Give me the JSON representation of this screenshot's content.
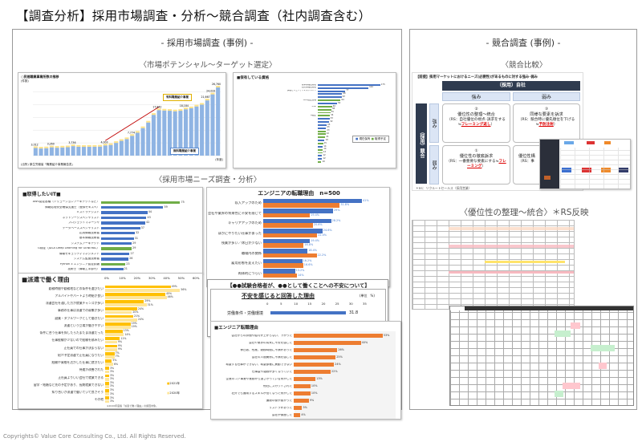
{
  "title": "【調査分析】採用市場調査・分析～競合調査（社内調査含む）",
  "left": {
    "heading": "- 採用市場調査 (事例) -",
    "section1": "〈市場ポテンシャル～ターゲット選定〉",
    "section2": "〈採用市場ニーズ調査・分析〉",
    "market_chart": {
      "title": "○民間職業事業所数の推移",
      "unit": "(件数)",
      "xunit": "(年度)",
      "source": "(出所) 厚生労働省「職業紹介事業報告書」",
      "legend_paid": "有料職業紹介事業",
      "legend_free": "無料職業紹介事業",
      "values": [
        3012,
        2800,
        2900,
        3260,
        3100,
        3200,
        3300,
        3736,
        3500,
        3450,
        3500,
        3500,
        3550,
        4003,
        4200,
        5000,
        5800,
        6500,
        7774,
        9000,
        10800,
        13000,
        16000,
        17842,
        17700,
        17600,
        17400,
        17600,
        18184,
        18600,
        19300,
        20000,
        21667,
        24033,
        26760
      ],
      "labels": [
        "3,012",
        "3,260",
        "3,736",
        "4,003",
        "7,774",
        "17,842",
        "18,184",
        "21,667",
        "24,033",
        "26,760"
      ]
    },
    "quals_chart": {
      "title": "■保有している資格",
      "legend": [
        "現在保有",
        "取得予定"
      ],
      "items": [
        {
          "l": "基本情報技術者",
          "v": 175,
          "c": "b"
        },
        {
          "l": "応用情報技術者",
          "v": 142,
          "c": "b"
        },
        {
          "l": "情報セキュリティマネジメント",
          "v": 77,
          "c": "b"
        },
        {
          "l": "",
          "v": 68,
          "c": "b"
        },
        {
          "l": "",
          "v": 67,
          "c": "b"
        },
        {
          "l": "AWS認定各種",
          "v": 64,
          "c": "g"
        },
        {
          "l": "",
          "v": 54,
          "c": "b"
        },
        {
          "l": "PMP",
          "v": 40,
          "c": "g"
        },
        {
          "l": "",
          "v": 38,
          "c": "g"
        },
        {
          "l": "",
          "v": 35,
          "c": "g"
        },
        {
          "l": "G検定",
          "v": 34,
          "c": "g"
        },
        {
          "l": "",
          "v": 33,
          "c": "b"
        },
        {
          "l": "",
          "v": 32,
          "c": "b"
        },
        {
          "l": "",
          "v": 25,
          "c": "b"
        },
        {
          "l": "",
          "v": 23,
          "c": "b"
        },
        {
          "l": "",
          "v": 23,
          "c": "g"
        },
        {
          "l": "",
          "v": 22,
          "c": "g"
        },
        {
          "l": "",
          "v": 21,
          "c": "g"
        },
        {
          "l": "",
          "v": 19,
          "c": "b"
        },
        {
          "l": "",
          "v": 15,
          "c": "g"
        },
        {
          "l": "",
          "v": 14,
          "c": "b"
        },
        {
          "l": "",
          "v": 14,
          "c": "g"
        },
        {
          "l": "",
          "v": 13,
          "c": "g"
        },
        {
          "l": "",
          "v": 12,
          "c": "b"
        },
        {
          "l": "",
          "v": 12,
          "c": "b"
        },
        {
          "l": "",
          "v": 10,
          "c": "g"
        }
      ]
    },
    "want_it": {
      "title": "■取得したいIT■",
      "items": [
        {
          "l": "AWS認定各種（ソリューションアーキテクトなど）",
          "v": 75,
          "c": "g"
        },
        {
          "l": "情報処理安全確保支援士（登録セキスペ）",
          "v": 59,
          "c": "b"
        },
        {
          "l": "ITストラテジスト",
          "v": 44,
          "c": "b"
        },
        {
          "l": "ネットワークスペシャリスト",
          "v": 43,
          "c": "b"
        },
        {
          "l": "プロジェクトマネージャ",
          "v": 42,
          "c": "b"
        },
        {
          "l": "データベーススペシャリスト",
          "v": 37,
          "c": "b"
        },
        {
          "l": "応用情報技術者",
          "v": 32,
          "c": "b"
        },
        {
          "l": "基本情報技術者",
          "v": 31,
          "c": "b"
        },
        {
          "l": "システムアーキテクト",
          "v": 29,
          "c": "b"
        },
        {
          "l": "G検定（JDLA Deep Learning for GENERAL）",
          "v": 29,
          "c": "g"
        },
        {
          "l": "情報セキュリティマネジメント",
          "v": 27,
          "c": "b"
        },
        {
          "l": "システム監査技術者",
          "v": 26,
          "c": "b"
        },
        {
          "l": "Python 3 エンジニア認定試験",
          "v": 23,
          "c": "g"
        },
        {
          "l": "技術士（情報工学部門）",
          "v": 21,
          "c": "b"
        }
      ]
    },
    "haken": {
      "title": "■派遣で働く理由",
      "ticks": [
        "0%",
        "10%",
        "20%",
        "30%",
        "40%",
        "50%",
        "60%"
      ],
      "legend": [
        "2021年",
        "2020年"
      ],
      "note": "※2020年度版「派遣で働く理由」の調査対象。",
      "items": [
        {
          "l": "勤務時間や勤務地などの条件を選びたい",
          "a": 49,
          "b": 56
        },
        {
          "l": "アルバイトやパートより時給が良い",
          "a": 45,
          "b": 46
        },
        {
          "l": "派遣会社を通した方が就業チャンスが多い",
          "a": 29,
          "b": 31
        },
        {
          "l": "事務の仕事は派遣での募集が多い",
          "a": 24,
          "b": 20
        },
        {
          "l": "副業・ダブルワークとして働きたい",
          "a": 21,
          "b": 24
        },
        {
          "l": "派遣という立場が働きやすい",
          "a": 19,
          "b": 19
        },
        {
          "l": "条件に合う仕事を探したらたまたま派遣だった",
          "a": 13,
          "b": 14
        },
        {
          "l": "仕事経験が少ないので経験を積みたい",
          "a": 11,
          "b": 9
        },
        {
          "l": "正社員での仕事が決まらない",
          "a": 9,
          "b": 9
        },
        {
          "l": "紹介予定派遣で正社員になりたい",
          "a": 7,
          "b": 7
        },
        {
          "l": "経験や資格を活かした仕事に就きたい",
          "a": 5,
          "b": 6
        },
        {
          "l": "待遇が改善された",
          "a": 3,
          "b": 3
        },
        {
          "l": "正社員よりいい会社で就業できる",
          "a": 3,
          "b": 3
        },
        {
          "l": "留学・結婚など先の予定があり、長期就業できない",
          "a": 3,
          "b": 3
        },
        {
          "l": "知り合いが派遣で働いていて良さそう",
          "a": 3,
          "b": 3
        },
        {
          "l": "その他",
          "a": 3,
          "b": 3
        }
      ]
    },
    "engineer_reasons": {
      "title": "エンジニアの転職理由　n=500",
      "items": [
        {
          "l": "収入アップのため",
          "a": 41.0,
          "b": 31.8
        },
        {
          "l": "会社や業界の将来性に不安を感じて",
          "a": 29.0,
          "b": 19.4
        },
        {
          "l": "キャリアアップのため",
          "a": 28.2,
          "b": 20.6
        },
        {
          "l": "ほかにやりたい仕事があった",
          "a": 24.6,
          "b": 22.4
        },
        {
          "l": "残業が多い／休日が少ない",
          "a": 19.4,
          "b": 16.8
        },
        {
          "l": "職場内の関係",
          "a": 18.4,
          "b": 22.2
        },
        {
          "l": "雇用形態を変えたい",
          "a": 16.2,
          "b": 16.6
        },
        {
          "l": "肉体的につらい",
          "a": 13.2,
          "b": 14.0
        }
      ]
    },
    "anxiety": {
      "header": "【●●試験合格者が、●●として働くことへの不安について】",
      "title": "不安を感じると回答した理由",
      "unit": "(単位　%)",
      "ticks": [
        "0",
        "5",
        "10",
        "15",
        "20",
        "25",
        "30",
        "35"
      ],
      "item": "労働条件・労働環境",
      "value": "31.8"
    },
    "engineer_change": {
      "title": "■エンジニア転職理由",
      "items": [
        {
          "l": "会社からの評価や給与が上がらない、下がった",
          "v": 53
        },
        {
          "l": "会社や業界の将来に不安を感じた",
          "v": 40
        },
        {
          "l": "休日数、残業、勤務時間に不満があった",
          "v": 26
        },
        {
          "l": "会社の人間関係に不満を感じた",
          "v": 25
        },
        {
          "l": "希望する仕事ができない、希望部署に異動できない",
          "v": 24
        },
        {
          "l": "仕事量や雑務が多くなっていた",
          "v": 22
        },
        {
          "l": "企業のコア事業や業務から遠ざかっている気がした",
          "v": 13
        },
        {
          "l": "他社にスカウトされた",
          "v": 10
        },
        {
          "l": "社外でも通用するスキルが低くなった気がした",
          "v": 10
        },
        {
          "l": "通勤の便が悪かった",
          "v": 9
        },
        {
          "l": "リストラがあった",
          "v": 5
        },
        {
          "l": "会社が倒産した",
          "v": 4
        }
      ]
    }
  },
  "right": {
    "heading": "- 競合調査 (事例) -",
    "section1": "〈競合比較〉",
    "section2": "〈優位性の整理～統合〉＊RS反映",
    "matrix": {
      "header": "【前提】採用マーケットにおけるニーズ(必要性)があるものに対する強み･弱み",
      "own": "（採用）自社",
      "competitor": "（採用）競合",
      "strength": "強み",
      "weakness": "弱み",
      "c2": {
        "num": "②",
        "title": "優位性の整理～統合",
        "desc": "（RS：自社優位の視点･訴求をする≒",
        "red": "フレーミング返し",
        "end": "）"
      },
      "c3": {
        "num": "③",
        "title": "同様な要素を訴求",
        "desc": "（RS：競合時に優先順位を下げる≒",
        "red": "予防注射",
        "end": "）"
      },
      "c1": {
        "num": "①",
        "title": "優位性の徹底訴求",
        "desc": "（RS：一番重要な要素にする≒",
        "red": "フレーミング",
        "end": "）"
      },
      "c4": {
        "num": "④",
        "title": "優位性構",
        "desc": "（RS：事",
        "red": "",
        "end": ""
      },
      "footnote": "＊RS：リクルートセールス（採用営業）"
    }
  },
  "footer": "Copyrights© Value Core Consulting Co., Ltd.  All Rights Reserved.",
  "colors": {
    "blue": "#4472c4",
    "green": "#70ad47",
    "orange": "#ed7d31",
    "amber": "#ffc000",
    "light_amber": "#ffe699",
    "navy": "#2f3b4f",
    "bar_blue": "#8fb4e3"
  }
}
